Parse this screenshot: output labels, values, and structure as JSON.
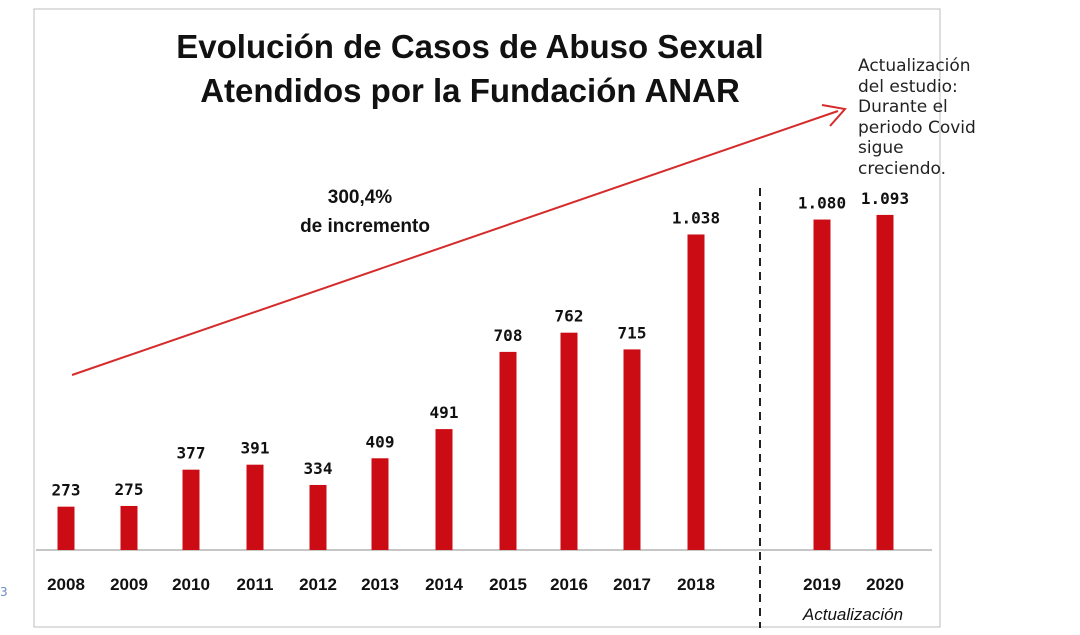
{
  "chart_data": {
    "type": "bar",
    "title_line1": "Evolución de Casos de Abuso Sexual",
    "title_line2": "Atendidos por la Fundación ANAR",
    "categories": [
      "2008",
      "2009",
      "2010",
      "2011",
      "2012",
      "2013",
      "2014",
      "2015",
      "2016",
      "2017",
      "2018",
      "2019",
      "2020"
    ],
    "values": [
      273,
      275,
      377,
      391,
      334,
      409,
      491,
      708,
      762,
      715,
      1038,
      1080,
      1093
    ],
    "value_labels": [
      "273",
      "275",
      "377",
      "391",
      "334",
      "409",
      "491",
      "708",
      "762",
      "715",
      "1.038",
      "1.080",
      "1.093"
    ],
    "bar_color": "#cc0c14",
    "increase_value": "300,4%",
    "increase_text": "de incremento",
    "trend_arrow_color": "#d62b2b",
    "update_label": "Actualización",
    "note": "Actualización\ndel estudio:\nDurante el\nperiodo Covid\nsigue\ncreciendo.",
    "xlabel": "",
    "ylabel": ""
  },
  "edge_mark": "3"
}
